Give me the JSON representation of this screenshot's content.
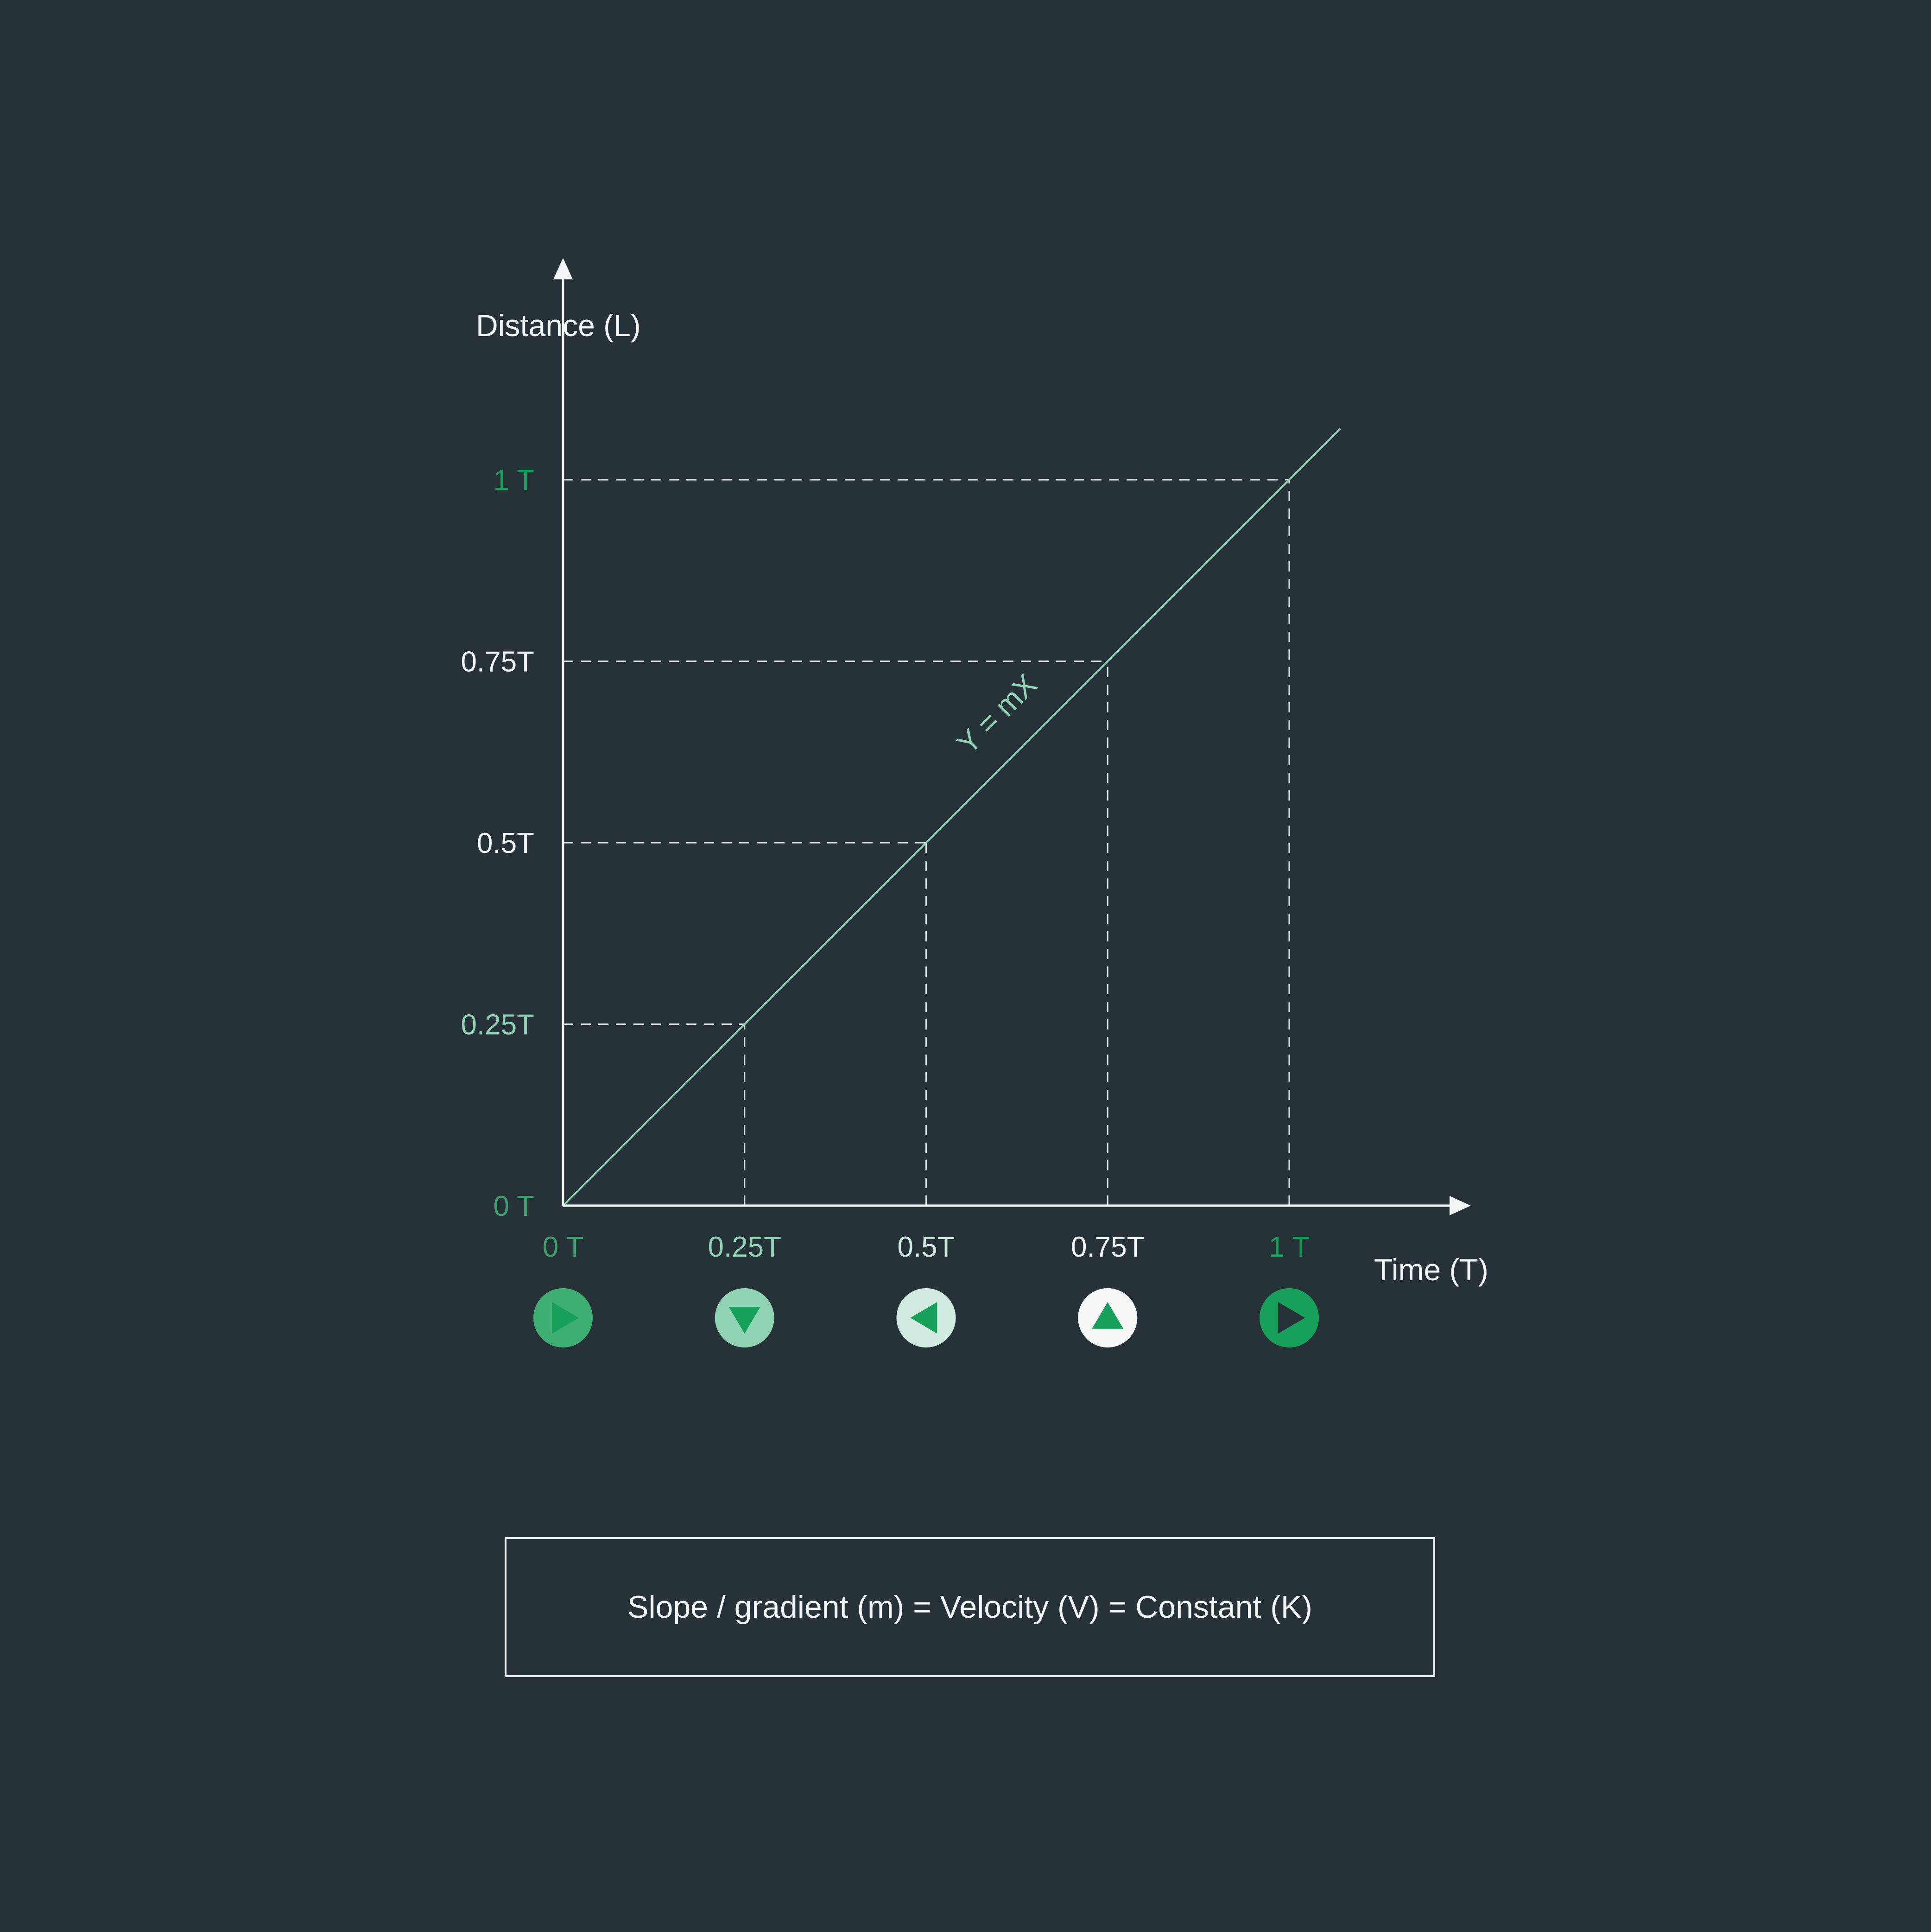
{
  "chart_data": {
    "type": "line",
    "xlabel": "Time (T)",
    "ylabel": "Distance (L)",
    "xlim": [
      0,
      1.18
    ],
    "ylim": [
      0,
      1.28
    ],
    "x_ticks": [
      {
        "value": 0,
        "label": "0 T",
        "color": "#3fa06e"
      },
      {
        "value": 0.25,
        "label": "0.25T",
        "color": "#8fd3b4"
      },
      {
        "value": 0.5,
        "label": "0.5T",
        "color": "#cfeadf"
      },
      {
        "value": 0.75,
        "label": "0.75T",
        "color": "#f2f5f6"
      },
      {
        "value": 1,
        "label": "1 T",
        "color": "#16a05a"
      }
    ],
    "y_ticks": [
      {
        "value": 0,
        "label": "0 T",
        "color": "#3fa06e"
      },
      {
        "value": 0.25,
        "label": "0.25T",
        "color": "#8fd3b4"
      },
      {
        "value": 0.5,
        "label": "0.5T",
        "color": "#f2f5f6"
      },
      {
        "value": 0.75,
        "label": "0.75T",
        "color": "#f2f5f6"
      },
      {
        "value": 1,
        "label": "1 T",
        "color": "#16a05a"
      }
    ],
    "series": [
      {
        "x": [
          0,
          0.25,
          0.5,
          0.75,
          1,
          1.07
        ],
        "y": [
          0,
          0.25,
          0.5,
          0.75,
          1,
          1.07
        ],
        "color": "#8fd3b4"
      }
    ],
    "annotations": [
      {
        "text": "Y = mX",
        "x": 0.56,
        "y": 0.62,
        "color": "#8fd3b4"
      }
    ],
    "guides": [
      0.25,
      0.5,
      0.75,
      1
    ],
    "markers": [
      {
        "x": 0,
        "icon": "play-right-icon",
        "bg": "#3fae73",
        "fg": "#16a05a"
      },
      {
        "x": 0.25,
        "icon": "triangle-down-icon",
        "bg": "#8fd3b4",
        "fg": "#16a05a"
      },
      {
        "x": 0.5,
        "icon": "triangle-left-icon",
        "bg": "#cfeadf",
        "fg": "#16a05a"
      },
      {
        "x": 0.75,
        "icon": "triangle-up-icon",
        "bg": "#f4f7f6",
        "fg": "#16a05a"
      },
      {
        "x": 1,
        "icon": "play-right-icon",
        "bg": "#16a05a",
        "fg": "#263238"
      }
    ],
    "grid": false,
    "guide_lines": "dashed"
  },
  "formula": "Slope / gradient (m) = Velocity (V) = Constant (K)",
  "colors": {
    "background": "#263238",
    "axis": "#f2f5f6",
    "line": "#8fd3b4",
    "accent": "#16a05a"
  }
}
